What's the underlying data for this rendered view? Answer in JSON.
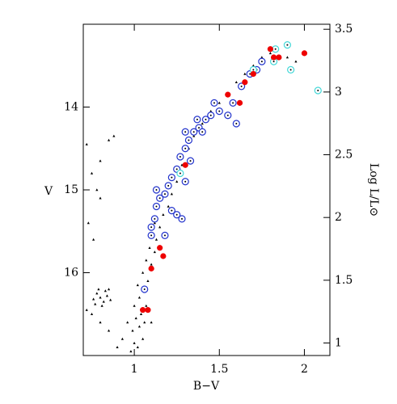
{
  "chart_data": {
    "type": "scatter",
    "x_label": "B−V",
    "y_label": "V",
    "y2_label": "Log L/L⊙",
    "xlim": [
      0.7,
      2.15
    ],
    "xticks": [
      1,
      1.5,
      2
    ],
    "ylim": [
      17,
      13
    ],
    "yticks": [
      14,
      15,
      16
    ],
    "y2lim": [
      0.9,
      3.54
    ],
    "y2ticks": [
      1,
      1.5,
      2,
      2.5,
      3,
      3.5
    ],
    "series": [
      {
        "color": "#000000",
        "marker": "triangle",
        "x": [
          0.98,
          1.0,
          1.02,
          1.05,
          0.99,
          1.03,
          1.06,
          1.01,
          1.04,
          1.07,
          1.0,
          1.03,
          1.06,
          1.02,
          1.08,
          1.05,
          1.1,
          1.07,
          1.12,
          1.09,
          1.13,
          1.1,
          1.15,
          1.12,
          1.17,
          1.2,
          1.22,
          1.25,
          1.28,
          1.32,
          1.35,
          1.4,
          1.45,
          1.5,
          1.55,
          1.6,
          1.65,
          1.7,
          1.75,
          1.8,
          1.9,
          1.95,
          0.78,
          0.8,
          0.82,
          0.84,
          0.76,
          0.79,
          0.83,
          0.86,
          0.81,
          0.77,
          0.85,
          0.72,
          0.75,
          0.78,
          0.8,
          0.85,
          0.88,
          0.73,
          0.76,
          0.8,
          0.93,
          0.96,
          0.9,
          0.85,
          0.8,
          0.75,
          0.72,
          1.1
        ],
        "values": [
          16.95,
          16.85,
          16.9,
          16.8,
          16.7,
          16.65,
          16.6,
          16.55,
          16.5,
          16.4,
          16.4,
          16.3,
          16.2,
          16.15,
          16.1,
          16.0,
          15.9,
          15.85,
          15.75,
          15.7,
          15.6,
          15.55,
          15.45,
          15.4,
          15.3,
          15.2,
          15.05,
          14.9,
          14.7,
          14.5,
          14.35,
          14.2,
          14.05,
          13.95,
          13.85,
          13.7,
          13.6,
          13.5,
          13.4,
          13.35,
          13.4,
          13.45,
          16.25,
          16.3,
          16.35,
          16.28,
          16.32,
          16.2,
          16.22,
          16.33,
          16.4,
          16.38,
          16.2,
          14.45,
          14.8,
          15.0,
          14.65,
          14.4,
          14.35,
          15.4,
          15.6,
          15.1,
          16.8,
          16.6,
          16.9,
          16.7,
          16.6,
          16.5,
          16.45,
          16.6
        ]
      },
      {
        "color": "#2233cc",
        "marker": "ring",
        "x": [
          1.1,
          1.12,
          1.13,
          1.15,
          1.18,
          1.2,
          1.22,
          1.25,
          1.27,
          1.3,
          1.32,
          1.35,
          1.38,
          1.42,
          1.45,
          1.5,
          1.47,
          1.55,
          1.6,
          1.58,
          1.63,
          1.68,
          1.72,
          1.75,
          1.22,
          1.25,
          1.28,
          1.18,
          1.1,
          1.13,
          1.3,
          1.37,
          1.4,
          1.33,
          1.3,
          1.06
        ],
        "values": [
          15.45,
          15.35,
          15.2,
          15.1,
          15.05,
          14.95,
          14.85,
          14.75,
          14.6,
          14.5,
          14.4,
          14.3,
          14.25,
          14.15,
          14.1,
          14.05,
          13.95,
          14.1,
          14.2,
          13.95,
          13.75,
          13.6,
          13.55,
          13.45,
          15.25,
          15.3,
          15.35,
          15.55,
          15.55,
          15.0,
          14.3,
          14.15,
          14.3,
          14.65,
          14.9,
          16.2
        ]
      },
      {
        "color": "#44d8d8",
        "marker": "ring",
        "x": [
          1.83,
          1.9,
          1.92,
          2.08,
          1.82,
          1.27,
          1.7
        ],
        "values": [
          13.3,
          13.25,
          13.55,
          13.8,
          13.45,
          14.8,
          13.55
        ]
      },
      {
        "color": "#ee0000",
        "marker": "dot",
        "x": [
          1.8,
          1.82,
          1.85,
          2.0,
          1.65,
          1.7,
          1.62,
          1.55,
          1.3,
          1.15,
          1.17,
          1.1,
          1.05,
          1.08
        ],
        "values": [
          13.3,
          13.4,
          13.4,
          13.35,
          13.7,
          13.6,
          13.95,
          13.85,
          14.7,
          15.7,
          15.8,
          15.95,
          16.45,
          16.45
        ]
      }
    ]
  }
}
